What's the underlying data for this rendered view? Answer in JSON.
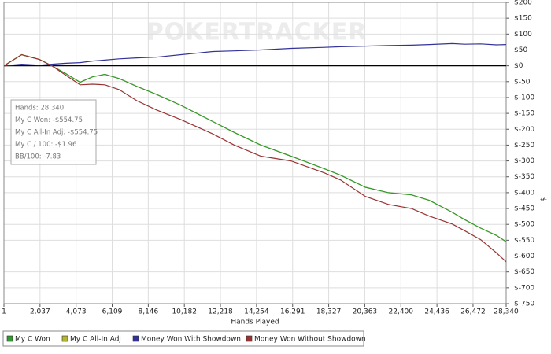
{
  "chart_data": {
    "type": "line",
    "watermark": "POKERTRACKER",
    "x_label": "Hands Played",
    "y_label": "$",
    "annotations": [
      "Hands: 28,340",
      "My C Won: -$554.75",
      "My C All-In Adj: -$554.75",
      "My C / 100: -$1.96",
      "BB/100: -7.83"
    ],
    "x": [
      1,
      1000,
      2000,
      2700,
      3500,
      4300,
      5000,
      5700,
      6500,
      7500,
      8600,
      10000,
      11800,
      13000,
      14500,
      16200,
      18100,
      19000,
      20400,
      21700,
      23000,
      24000,
      25300,
      26000,
      26900,
      27800,
      28340
    ],
    "series": [
      {
        "name": "My C All-In Adj",
        "color": "#b5b530",
        "values": [
          0,
          35,
          20,
          0,
          -25,
          -52,
          -35,
          -27,
          -40,
          -65,
          -90,
          -125,
          -176,
          -210,
          -250,
          -285,
          -325,
          -345,
          -383,
          -400,
          -407,
          -424,
          -462,
          -485,
          -512,
          -535,
          -554.75
        ]
      },
      {
        "name": "My C Won",
        "color": "#339933",
        "values": [
          0,
          35,
          20,
          0,
          -25,
          -52,
          -35,
          -27,
          -40,
          -65,
          -90,
          -125,
          -176,
          -210,
          -250,
          -285,
          -325,
          -345,
          -383,
          -400,
          -407,
          -424,
          -462,
          -485,
          -512,
          -535,
          -554.75
        ]
      },
      {
        "name": "Money Won With Showdown",
        "color": "#333399",
        "values": [
          0,
          5,
          2,
          5,
          8,
          10,
          15,
          18,
          22,
          25,
          27,
          35,
          45,
          47,
          50,
          55,
          58,
          60,
          62,
          64,
          65,
          67,
          70,
          68,
          69,
          66,
          67
        ]
      },
      {
        "name": "Money Won Without Showdown",
        "color": "#993333",
        "values": [
          0,
          35,
          20,
          0,
          -30,
          -60,
          -58,
          -60,
          -75,
          -110,
          -139,
          -170,
          -215,
          -250,
          -285,
          -300,
          -338,
          -360,
          -412,
          -437,
          -450,
          -474,
          -499,
          -520,
          -548,
          -590,
          -618
        ]
      }
    ],
    "legend_order": [
      1,
      0,
      2,
      3
    ],
    "xlim": [
      1,
      28340
    ],
    "ylim": [
      -750,
      200
    ],
    "xticks": [
      1,
      {
        "value": 2037,
        "label": "2,037"
      },
      {
        "value": 4073,
        "label": "4,073"
      },
      {
        "value": 6109,
        "label": "6,109"
      },
      {
        "value": 8146,
        "label": "8,146"
      },
      {
        "value": 10182,
        "label": "10,182"
      },
      {
        "value": 12218,
        "label": "12,218"
      },
      {
        "value": 14254,
        "label": "14,254"
      },
      {
        "value": 16291,
        "label": "16,291"
      },
      {
        "value": 18327,
        "label": "18,327"
      },
      {
        "value": 20363,
        "label": "20,363"
      },
      {
        "value": 22400,
        "label": "22,400"
      },
      {
        "value": 24436,
        "label": "24,436"
      },
      {
        "value": 26472,
        "label": "26,472"
      },
      {
        "value": 28340,
        "label": "28,340"
      }
    ],
    "yticks": [
      {
        "value": 200,
        "label": "$200"
      },
      {
        "value": 150,
        "label": "$150"
      },
      {
        "value": 100,
        "label": "$100"
      },
      {
        "value": 50,
        "label": "$50"
      },
      {
        "value": 0,
        "label": "$0"
      },
      {
        "value": -50,
        "label": "$-50"
      },
      {
        "value": -100,
        "label": "$-100"
      },
      {
        "value": -150,
        "label": "$-150"
      },
      {
        "value": -200,
        "label": "$-200"
      },
      {
        "value": -250,
        "label": "$-250"
      },
      {
        "value": -300,
        "label": "$-300"
      },
      {
        "value": -350,
        "label": "$-350"
      },
      {
        "value": -400,
        "label": "$-400"
      },
      {
        "value": -450,
        "label": "$-450"
      },
      {
        "value": -500,
        "label": "$-500"
      },
      {
        "value": -550,
        "label": "$-550"
      },
      {
        "value": -600,
        "label": "$-600"
      },
      {
        "value": -650,
        "label": "$-650"
      },
      {
        "value": -700,
        "label": "$-700"
      },
      {
        "value": -750,
        "label": "$-750"
      }
    ],
    "grid": true
  }
}
